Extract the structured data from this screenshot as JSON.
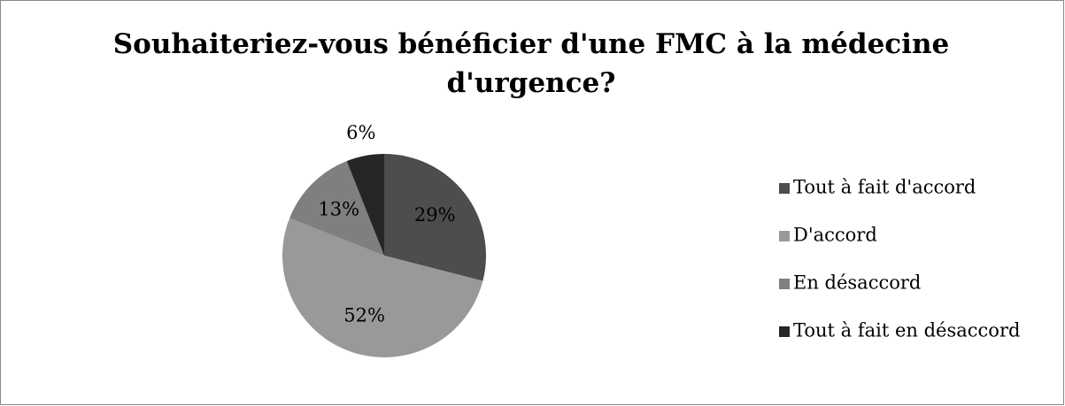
{
  "chart_data": {
    "type": "pie",
    "title": "Souhaiteriez-vous bénéficier d'une FMC à la médecine d'urgence?",
    "categories": [
      "Tout à fait d'accord",
      "D'accord",
      "En désaccord",
      "Tout à fait en désaccord"
    ],
    "values": [
      29,
      52,
      13,
      6
    ],
    "value_labels": [
      "29%",
      "52%",
      "13%",
      "6%"
    ],
    "colors": [
      "#4d4d4d",
      "#999999",
      "#7f7f7f",
      "#262626"
    ],
    "legend": "right"
  }
}
